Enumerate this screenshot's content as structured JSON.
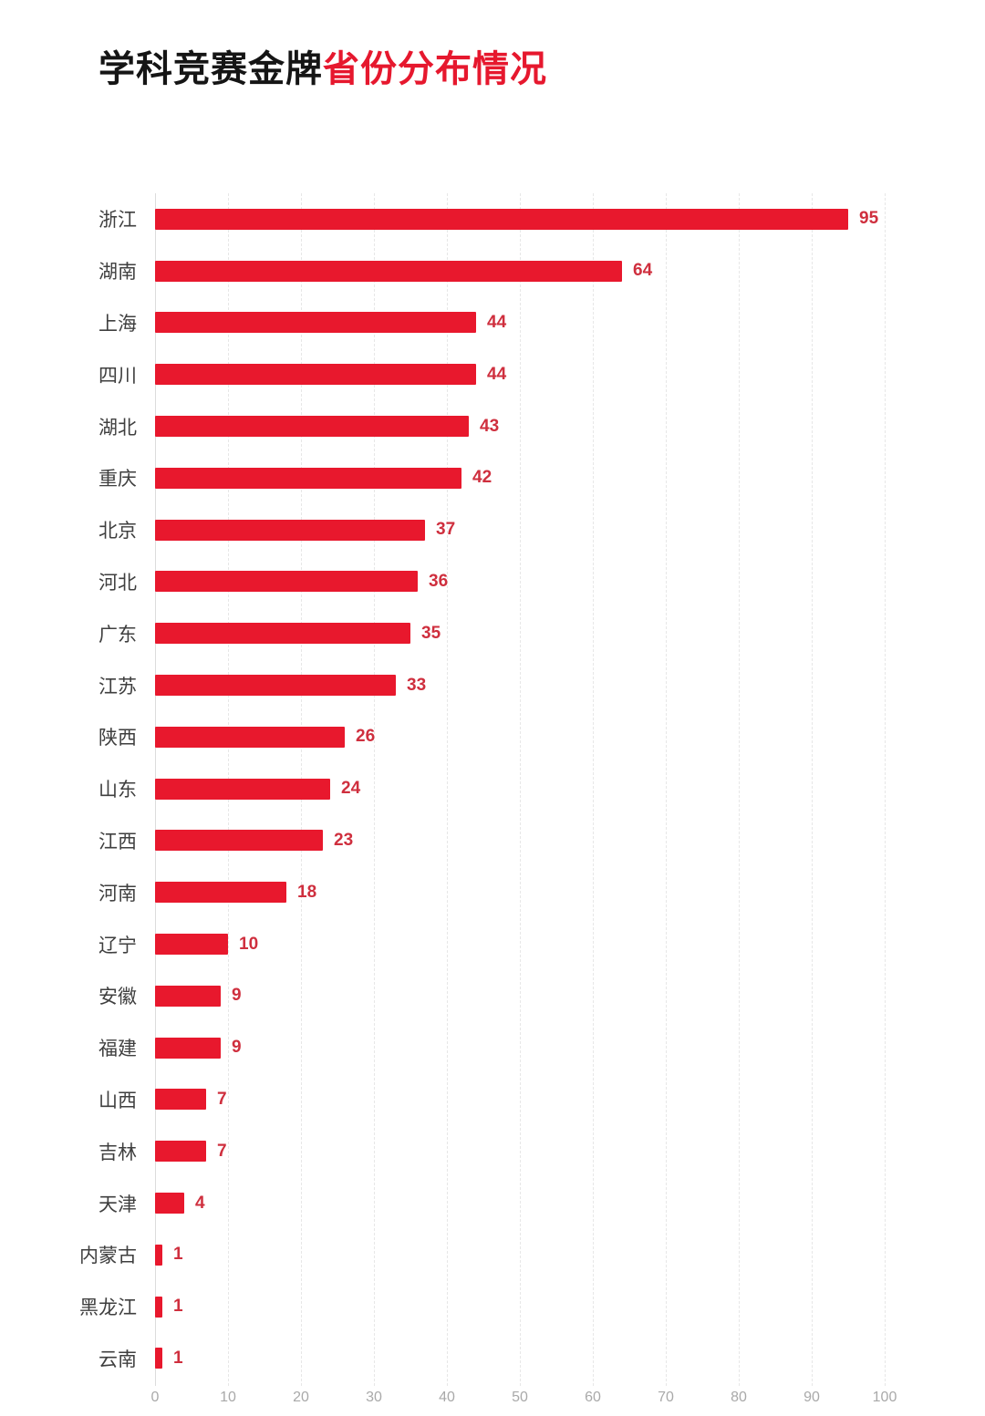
{
  "title": {
    "black_part": "学科竞赛金牌",
    "red_part": "省份分布情况"
  },
  "colors": {
    "bar": "#e8182d",
    "value_label": "#cf2f3e",
    "title_red": "#e6182e",
    "title_black": "#151515",
    "category_label": "#3f3f3f",
    "axis_label": "#a9a9a9",
    "gridline": "#e7e7e7"
  },
  "chart_data": {
    "type": "bar",
    "orientation": "horizontal",
    "title": "学科竞赛金牌省份分布情况",
    "categories": [
      "浙江",
      "湖南",
      "上海",
      "四川",
      "湖北",
      "重庆",
      "北京",
      "河北",
      "广东",
      "江苏",
      "陕西",
      "山东",
      "江西",
      "河南",
      "辽宁",
      "安徽",
      "福建",
      "山西",
      "吉林",
      "天津",
      "内蒙古",
      "黑龙江",
      "云南"
    ],
    "values": [
      95,
      64,
      44,
      44,
      43,
      42,
      37,
      36,
      35,
      33,
      26,
      24,
      23,
      18,
      10,
      9,
      9,
      7,
      7,
      4,
      1,
      1,
      1
    ],
    "xlabel": "",
    "ylabel": "",
    "xlim": [
      0,
      100
    ],
    "xticks": [
      0,
      10,
      20,
      30,
      40,
      50,
      60,
      70,
      80,
      90,
      100
    ],
    "grid": "vertical-dashed",
    "legend": "none",
    "value_labels": "end-of-bar"
  }
}
